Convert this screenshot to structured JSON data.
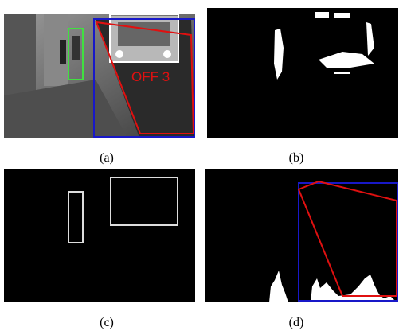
{
  "panels": [
    {
      "label": "(a)",
      "annotation": "OFF 3"
    },
    {
      "label": "(b)"
    },
    {
      "label": "(c)"
    },
    {
      "label": "(d)"
    }
  ]
}
